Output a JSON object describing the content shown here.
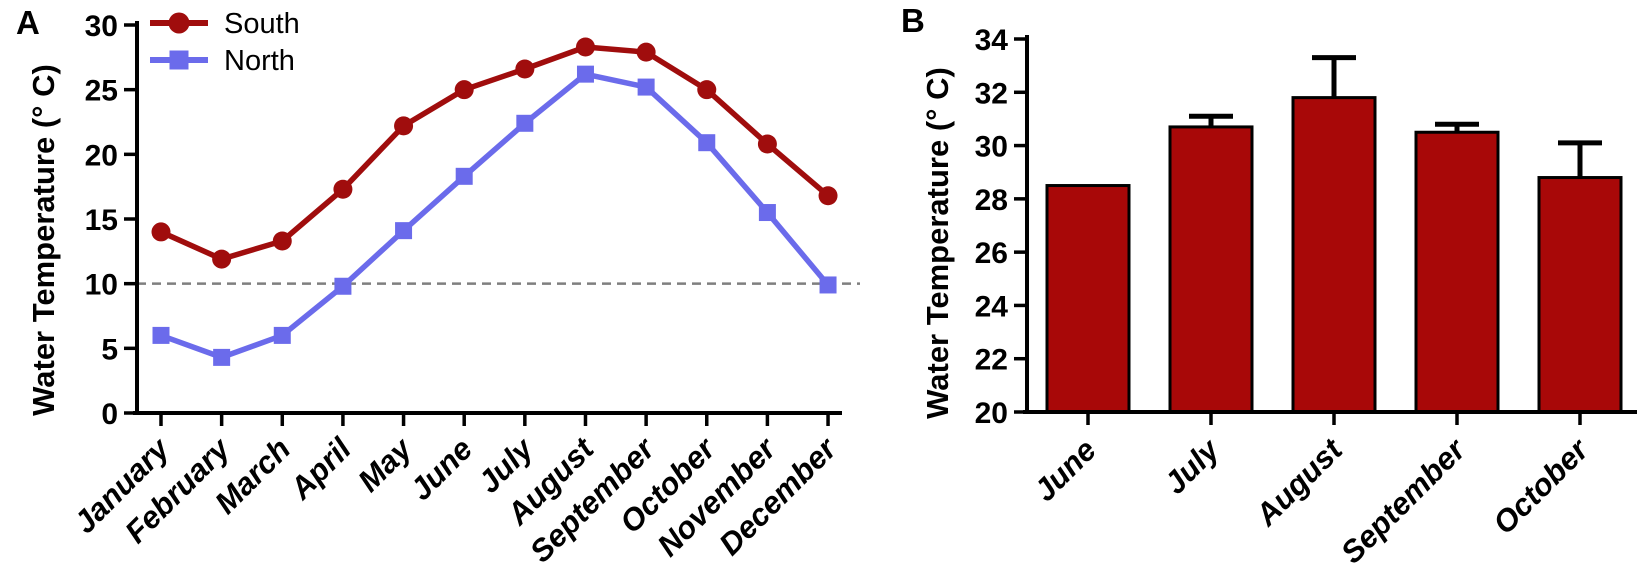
{
  "panels": {
    "a": {
      "label": "A"
    },
    "b": {
      "label": "B"
    }
  },
  "chart_data": [
    {
      "type": "line",
      "panel": "A",
      "title": "",
      "xlabel": "",
      "ylabel": "Water Temperature (° C)",
      "categories": [
        "January",
        "February",
        "March",
        "April",
        "May",
        "June",
        "July",
        "August",
        "September",
        "October",
        "November",
        "December"
      ],
      "series": [
        {
          "name": "South",
          "marker": "circle",
          "color": "#A00D0D",
          "values": [
            14.0,
            11.9,
            13.3,
            17.3,
            22.2,
            25.0,
            26.6,
            28.3,
            27.9,
            25.0,
            20.8,
            16.8
          ]
        },
        {
          "name": "North",
          "marker": "square",
          "color": "#6B6BEB",
          "values": [
            6.0,
            4.3,
            6.0,
            9.8,
            14.1,
            18.3,
            22.4,
            26.2,
            25.2,
            20.9,
            15.5,
            9.9
          ]
        }
      ],
      "ylim": [
        0,
        30
      ],
      "ytick_step": 5,
      "reference_line_y": 10,
      "reference_line_style": "dashed",
      "reference_line_color": "#7F7F7F",
      "legend_position": "top-left",
      "grid": false,
      "axis_color": "#000000"
    },
    {
      "type": "bar",
      "panel": "B",
      "title": "",
      "xlabel": "",
      "ylabel": "Water Temperature (° C)",
      "categories": [
        "June",
        "July",
        "August",
        "September",
        "October"
      ],
      "values": [
        28.5,
        30.7,
        31.8,
        30.5,
        28.8
      ],
      "errors": [
        0,
        0.4,
        1.5,
        0.3,
        1.3
      ],
      "error_direction": "up",
      "bar_color": "#A80808",
      "bar_border_color": "#000000",
      "ylim": [
        20,
        34
      ],
      "ytick_step": 2,
      "grid": false,
      "axis_color": "#000000"
    }
  ]
}
